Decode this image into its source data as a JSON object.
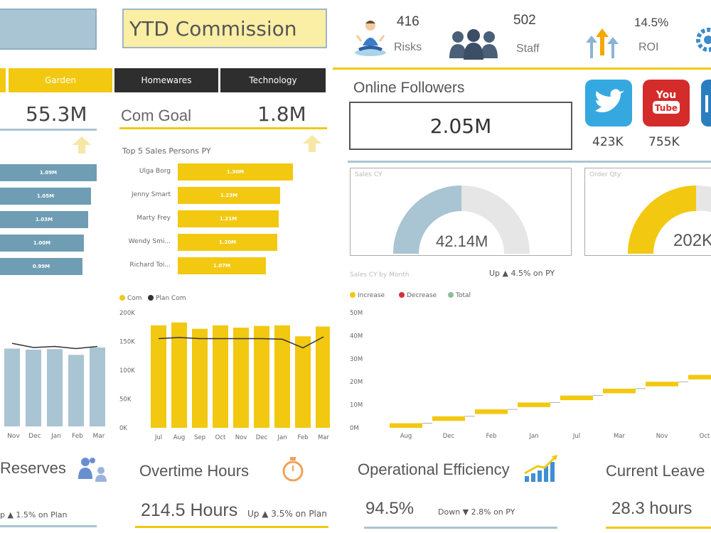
{
  "colors": {
    "yellow": "#f2c811",
    "blue": "#6f9db4",
    "lightblue": "#a9c4d3",
    "dark": "#2e2e2e",
    "grey": "#e5e5e5"
  },
  "header": {
    "ytd_title": "YTD Commission"
  },
  "kpis": [
    {
      "value": "416",
      "label": "Risks",
      "icon": "meditation-person-icon"
    },
    {
      "value": "502",
      "label": "Staff",
      "icon": "staff-group-icon"
    },
    {
      "value": "14.5%",
      "label": "ROI",
      "icon": "roi-arrows-icon"
    }
  ],
  "tabs": {
    "garden": "Garden",
    "homewares": "Homewares",
    "technology": "Technology"
  },
  "left_panel": {
    "value": "55.3M"
  },
  "com_goal": {
    "label": "Com Goal",
    "value": "1.8M",
    "top5_title": "Top 5 Sales Persons PY"
  },
  "top5_left": {
    "bars": [
      "1.09M",
      "1.05M",
      "1.03M",
      "1.00M",
      "0.99M"
    ]
  },
  "top5_right": {
    "names": [
      "Ulga Borg",
      "Jenny Smart",
      "Marty Frey",
      "Wendy Smi...",
      "Richard Toi..."
    ],
    "bars": [
      "1.30M",
      "1.23M",
      "1.21M",
      "1.20M",
      "1.07M"
    ]
  },
  "online": {
    "title": "Online Followers",
    "value": "2.05M",
    "twitter": "423K",
    "youtube": "755K",
    "youtube_logo_top": "You",
    "youtube_logo_bottom": "Tube"
  },
  "sales_gauge": {
    "title": "Sales CY",
    "value": "42.14M",
    "fraction": 0.5
  },
  "order_gauge": {
    "title": "Order Qty",
    "value": "202K",
    "fraction": 0.5
  },
  "sales_month": {
    "title": "Sales CY by Month",
    "subtitle": "Up ▲ 4.5% on PY"
  },
  "bottom": {
    "reserves": "Reserves",
    "reserves_sub": "p ▲ 1.5% on Plan",
    "overtime": "Overtime Hours",
    "overtime_value": "214.5 Hours",
    "overtime_sub": "Up ▲ 3.5% on Plan",
    "opeff": "Operational Efficiency",
    "opeff_value": "94.5%",
    "opeff_sub": "Down ▼ 2.8% on PY",
    "leave": "Current Leave",
    "leave_value": "28.3 hours"
  },
  "chart_data": [
    {
      "type": "bar",
      "title": "",
      "categories": [
        "Nov",
        "Dec",
        "Jan",
        "Feb",
        "Mar"
      ],
      "series": [
        {
          "values": [
            148,
            146,
            147,
            136,
            150
          ]
        }
      ],
      "line": [
        158,
        150,
        152,
        148,
        152
      ]
    },
    {
      "type": "bar",
      "title": "",
      "legend": [
        "Com",
        "Plan Com"
      ],
      "categories": [
        "Jul",
        "Aug",
        "Sep",
        "Oct",
        "Nov",
        "Dec",
        "Jan",
        "Feb",
        "Mar"
      ],
      "series": [
        {
          "name": "Com",
          "values": [
            178,
            183,
            172,
            178,
            174,
            177,
            178,
            159,
            176
          ]
        },
        {
          "name": "Plan Com",
          "values": [
            155,
            157,
            155,
            155,
            155,
            155,
            154,
            139,
            158
          ]
        }
      ],
      "yticks": [
        "200K",
        "150K",
        "100K",
        "50K",
        "0K"
      ],
      "ylim": [
        0,
        200
      ]
    },
    {
      "type": "bar",
      "title": "",
      "legend": [
        "Increase",
        "Decrease",
        "Total"
      ],
      "categories": [
        "Aug",
        "Dec",
        "Feb",
        "Jan",
        "Jul",
        "Mar",
        "Nov",
        "Oct"
      ],
      "series": [
        {
          "name": "Increase",
          "start": [
            0,
            3,
            6,
            9,
            12,
            15,
            18,
            21
          ],
          "end": [
            2,
            5,
            8,
            11,
            14,
            17,
            20,
            23
          ]
        }
      ],
      "yticks": [
        "50M",
        "40M",
        "30M",
        "20M",
        "10M",
        "0M"
      ],
      "ylim": [
        0,
        50
      ]
    }
  ]
}
